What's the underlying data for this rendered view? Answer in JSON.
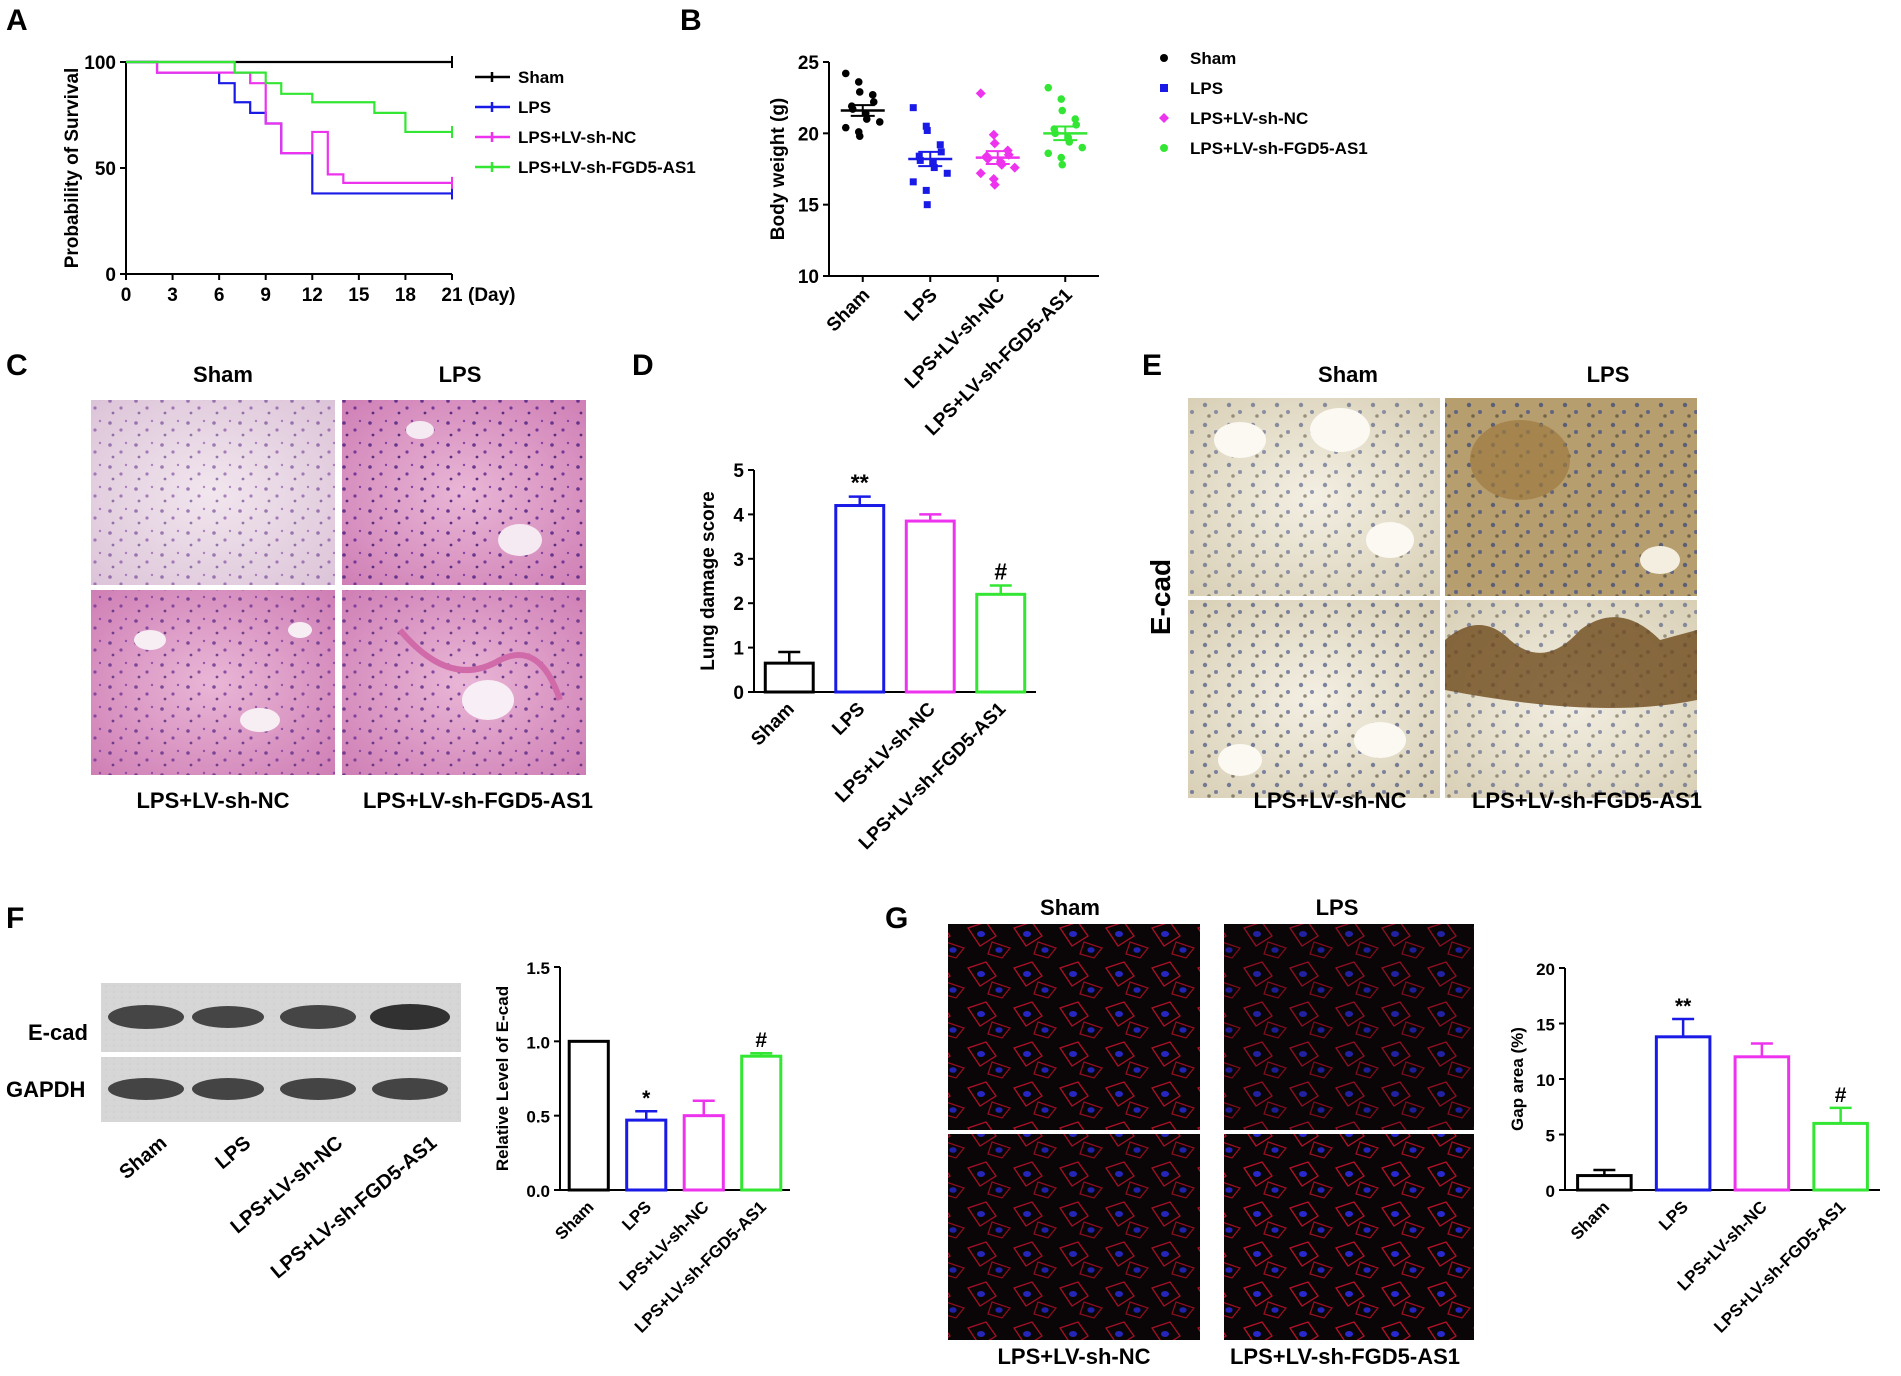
{
  "panels": {
    "A": "A",
    "B": "B",
    "C": "C",
    "D": "D",
    "E": "E",
    "F": "F",
    "G": "G"
  },
  "colors": {
    "sham": "#000000",
    "lps": "#1a1ae6",
    "nc": "#ee33ee",
    "fgd": "#33e633"
  },
  "groups": [
    "Sham",
    "LPS",
    "LPS+LV-sh-NC",
    "LPS+LV-sh-FGD5-AS1"
  ],
  "micrographs": {
    "he": {
      "top_labels": [
        "Sham",
        "LPS"
      ],
      "bottom_labels": [
        "LPS+LV-sh-NC",
        "LPS+LV-sh-FGD5-AS1"
      ]
    },
    "ihc": {
      "top_labels": [
        "Sham",
        "LPS"
      ],
      "bottom_labels": [
        "LPS+LV-sh-NC",
        "LPS+LV-sh-FGD5-AS1"
      ],
      "side_label": "E-cad"
    },
    "fluor": {
      "top_labels": [
        "Sham",
        "LPS"
      ],
      "bottom_labels": [
        "LPS+LV-sh-NC",
        "LPS+LV-sh-FGD5-AS1"
      ]
    }
  },
  "blot": {
    "rows": [
      "E-cad",
      "GAPDH"
    ],
    "lanes": [
      "Sham",
      "LPS",
      "LPS+LV-sh-NC",
      "LPS+LV-sh-FGD5-AS1"
    ]
  },
  "chart_data": [
    {
      "panel": "A",
      "type": "line",
      "ylabel": "Probability of Survival",
      "xlabel": "(Day)",
      "xlim": [
        0,
        21
      ],
      "ylim": [
        0,
        100
      ],
      "xticks": [
        0,
        3,
        6,
        9,
        12,
        15,
        18,
        21
      ],
      "yticks": [
        0,
        50,
        100
      ],
      "step": true,
      "series": [
        {
          "name": "Sham",
          "color": "#000000",
          "x": [
            0,
            21
          ],
          "y": [
            100,
            100
          ]
        },
        {
          "name": "LPS",
          "color": "#1a1ae6",
          "x": [
            0,
            2,
            6,
            7,
            8,
            9,
            10,
            12,
            21
          ],
          "y": [
            100,
            95,
            90,
            81,
            76,
            71,
            57,
            38,
            38
          ]
        },
        {
          "name": "LPS+LV-sh-NC",
          "color": "#ee33ee",
          "x": [
            0,
            2,
            7,
            8,
            9,
            10,
            12,
            13,
            14,
            21
          ],
          "y": [
            100,
            95,
            95,
            90,
            71,
            57,
            67,
            47,
            43,
            43
          ]
        },
        {
          "name": "LPS+LV-sh-FGD5-AS1",
          "color": "#33e633",
          "x": [
            0,
            3,
            7,
            9,
            10,
            11,
            12,
            14,
            16,
            17,
            18,
            21
          ],
          "y": [
            100,
            100,
            95,
            90,
            85,
            85,
            81,
            81,
            76,
            76,
            67,
            67
          ]
        }
      ]
    },
    {
      "panel": "B",
      "type": "scatter",
      "ylabel": "Body weight (g)",
      "categories": [
        "Sham",
        "LPS",
        "LPS+LV-sh-NC",
        "LPS+LV-sh-FGD5-AS1"
      ],
      "ylim": [
        10,
        25
      ],
      "yticks": [
        10,
        15,
        20,
        25
      ],
      "series": [
        {
          "name": "Sham",
          "color": "#000000",
          "marker": "circle",
          "mean": 21.6,
          "sem": 0.38,
          "points": [
            24.2,
            23.6,
            22.9,
            22.7,
            22.2,
            21.9,
            21.7,
            21.4,
            21.0,
            20.8,
            20.4,
            20.1,
            19.8
          ]
        },
        {
          "name": "LPS",
          "color": "#1a1ae6",
          "marker": "square",
          "mean": 18.2,
          "sem": 0.5,
          "points": [
            21.8,
            20.5,
            20.2,
            19.2,
            18.7,
            18.4,
            18.1,
            17.9,
            17.6,
            17.2,
            16.6,
            16.0,
            15.0
          ]
        },
        {
          "name": "LPS+LV-sh-NC",
          "color": "#ee33ee",
          "marker": "diamond",
          "mean": 18.3,
          "sem": 0.45,
          "points": [
            22.8,
            19.9,
            19.3,
            18.8,
            18.5,
            18.4,
            18.2,
            18.0,
            17.8,
            17.6,
            17.2,
            16.8,
            16.4
          ]
        },
        {
          "name": "LPS+LV-sh-FGD5-AS1",
          "color": "#33e633",
          "marker": "circle",
          "mean": 20.0,
          "sem": 0.48,
          "points": [
            23.2,
            22.4,
            21.6,
            21.0,
            20.6,
            20.3,
            20.0,
            19.7,
            19.4,
            19.0,
            18.6,
            18.3,
            17.8
          ]
        }
      ]
    },
    {
      "panel": "D",
      "type": "bar",
      "ylabel": "Lung damage score",
      "categories": [
        "Sham",
        "LPS",
        "LPS+LV-sh-NC",
        "LPS+LV-sh-FGD5-AS1"
      ],
      "colors": [
        "#000000",
        "#1a1ae6",
        "#ee33ee",
        "#33e633"
      ],
      "values": [
        0.65,
        4.2,
        3.85,
        2.2
      ],
      "errors": [
        0.25,
        0.2,
        0.15,
        0.2
      ],
      "annotations": [
        "",
        "**",
        "",
        "#"
      ],
      "ylim": [
        0,
        5
      ],
      "yticks": [
        0,
        1,
        2,
        3,
        4,
        5
      ]
    },
    {
      "panel": "F",
      "type": "bar",
      "ylabel": "Relative Level of E-cad",
      "categories": [
        "Sham",
        "LPS",
        "LPS+LV-sh-NC",
        "LPS+LV-sh-FGD5-AS1"
      ],
      "colors": [
        "#000000",
        "#1a1ae6",
        "#ee33ee",
        "#33e633"
      ],
      "values": [
        1.0,
        0.47,
        0.5,
        0.9
      ],
      "errors": [
        0,
        0.06,
        0.1,
        0.02
      ],
      "annotations": [
        "",
        "*",
        "",
        "#"
      ],
      "ylim": [
        0,
        1.5
      ],
      "yticks": [
        0.0,
        0.5,
        1.0,
        1.5
      ],
      "ytick_labels": [
        "0.0",
        "0.5",
        "1.0",
        "1.5"
      ]
    },
    {
      "panel": "G",
      "type": "bar",
      "ylabel": "Gap area (%)",
      "categories": [
        "Sham",
        "LPS",
        "LPS+LV-sh-NC",
        "LPS+LV-sh-FGD5-AS1"
      ],
      "colors": [
        "#000000",
        "#1a1ae6",
        "#ee33ee",
        "#33e633"
      ],
      "values": [
        1.3,
        13.8,
        12.0,
        6.0
      ],
      "errors": [
        0.5,
        1.6,
        1.2,
        1.4
      ],
      "annotations": [
        "",
        "**",
        "",
        "#"
      ],
      "ylim": [
        0,
        20
      ],
      "yticks": [
        0,
        5,
        10,
        15,
        20
      ]
    }
  ]
}
